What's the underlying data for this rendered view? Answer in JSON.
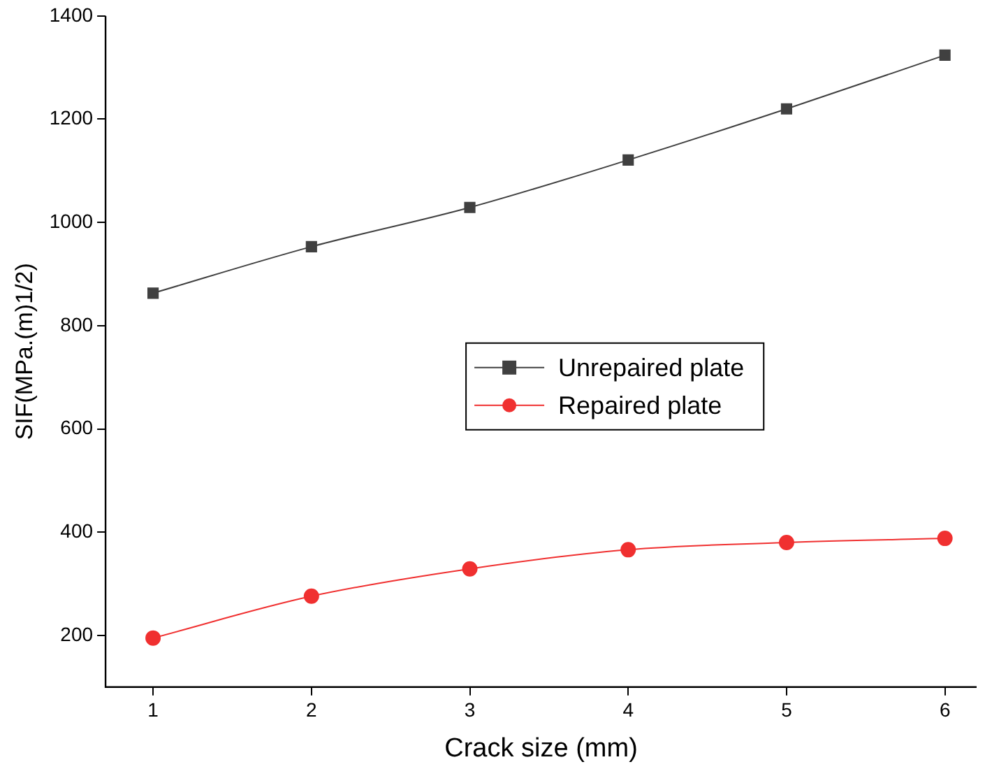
{
  "chart_data": {
    "type": "line",
    "xlabel": "Crack size (mm)",
    "ylabel": "SIF(MPa.(m)1/2)",
    "x": [
      1,
      2,
      3,
      4,
      5,
      6
    ],
    "series": [
      {
        "name": "Unrepaired plate",
        "color": "#404040",
        "marker": "square",
        "values": [
          863,
          953,
          1029,
          1121,
          1220,
          1324
        ]
      },
      {
        "name": "Repaired plate",
        "color": "#f03030",
        "marker": "circle",
        "values": [
          195,
          276,
          329,
          366,
          380,
          388
        ]
      }
    ],
    "xlim": [
      0.7,
      6.2
    ],
    "xticks": [
      1,
      2,
      3,
      4,
      5,
      6
    ],
    "ylim": [
      100,
      1400
    ],
    "yticks": [
      200,
      400,
      600,
      800,
      1000,
      1200,
      1400
    ],
    "grid": false,
    "legend": "right"
  }
}
